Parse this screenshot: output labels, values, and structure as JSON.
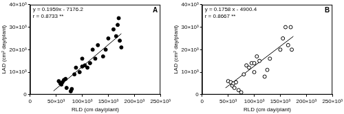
{
  "chart_data": [
    {
      "type": "scatter",
      "title": "A",
      "annotations": [
        "y = 0.1959x - 7176.2",
        "r = 0.8733 **"
      ],
      "x_label": "RLD (cm day/plant)",
      "y_label": "LAD (cm² day/plant)",
      "xlim": [
        0,
        250000
      ],
      "xticks": [
        0,
        {
          "value": 50000,
          "label": "50×10³"
        },
        {
          "value": 100000,
          "label": "100×10³"
        },
        {
          "value": 150000,
          "label": "150×10³"
        },
        {
          "value": 200000,
          "label": "200×10³"
        },
        {
          "value": 250000,
          "label": "250×10³"
        }
      ],
      "ylim": [
        0,
        40000
      ],
      "yticks": [
        0,
        {
          "value": 10000,
          "label": "10×10³"
        },
        {
          "value": 20000,
          "label": "20×10³"
        },
        {
          "value": 30000,
          "label": "30×10³"
        },
        {
          "value": 40000,
          "label": "40×10³"
        }
      ],
      "grid": false,
      "series": [
        {
          "type": "scatter",
          "marker": "filled",
          "color": "#000000",
          "x": [
            55000,
            58000,
            60000,
            62000,
            65000,
            68000,
            70000,
            78000,
            80000,
            85000,
            88000,
            95000,
            100000,
            100000,
            105000,
            110000,
            115000,
            120000,
            125000,
            130000,
            140000,
            145000,
            150000,
            160000,
            165000,
            168000,
            170000,
            172000,
            175000
          ],
          "values": [
            6000,
            5000,
            4500,
            5500,
            6500,
            7000,
            3000,
            1500,
            2500,
            9000,
            12000,
            10000,
            12500,
            16000,
            13000,
            12000,
            14000,
            20000,
            16000,
            22000,
            17000,
            20000,
            25000,
            29000,
            26000,
            31000,
            34000,
            24000,
            21000
          ]
        },
        {
          "type": "line",
          "line_style": "solid",
          "color": "#000000",
          "x": [
            45000,
            175000
          ],
          "values": [
            1640,
            27100
          ]
        }
      ]
    },
    {
      "type": "scatter",
      "title": "B",
      "annotations": [
        "y = 0.1758 x - 4900.4",
        "r = 0.8667 **"
      ],
      "x_label": "RLD (cm day/plant)",
      "y_label": "LAD (cm² day/plant)",
      "xlim": [
        0,
        250000
      ],
      "xticks": [
        0,
        {
          "value": 50000,
          "label": "50×10³"
        },
        {
          "value": 100000,
          "label": "100×10³"
        },
        {
          "value": 150000,
          "label": "150×10³"
        },
        {
          "value": 200000,
          "label": "200×10³"
        },
        {
          "value": 250000,
          "label": "250×10³"
        }
      ],
      "ylim": [
        0,
        40000
      ],
      "yticks": [
        0,
        {
          "value": 10000,
          "label": "10×10³"
        },
        {
          "value": 20000,
          "label": "20×10³"
        },
        {
          "value": 30000,
          "label": "30×10³"
        },
        {
          "value": 40000,
          "label": "40×10³"
        }
      ],
      "grid": false,
      "series": [
        {
          "type": "scatter",
          "marker": "open",
          "color": "#000000",
          "x": [
            50000,
            55000,
            58000,
            60000,
            62000,
            65000,
            70000,
            75000,
            80000,
            85000,
            90000,
            95000,
            100000,
            100000,
            105000,
            110000,
            120000,
            125000,
            130000,
            150000,
            155000,
            160000,
            165000,
            170000,
            172000
          ],
          "values": [
            6000,
            5500,
            4000,
            5000,
            3000,
            5500,
            2000,
            1000,
            9000,
            13000,
            12000,
            14000,
            14000,
            10000,
            17000,
            15000,
            8000,
            11000,
            16000,
            20000,
            25000,
            30000,
            22000,
            30000,
            20000
          ]
        },
        {
          "type": "line",
          "line_style": "solid",
          "color": "#000000",
          "x": [
            45000,
            175000
          ],
          "values": [
            3000,
            25900
          ]
        }
      ]
    }
  ]
}
